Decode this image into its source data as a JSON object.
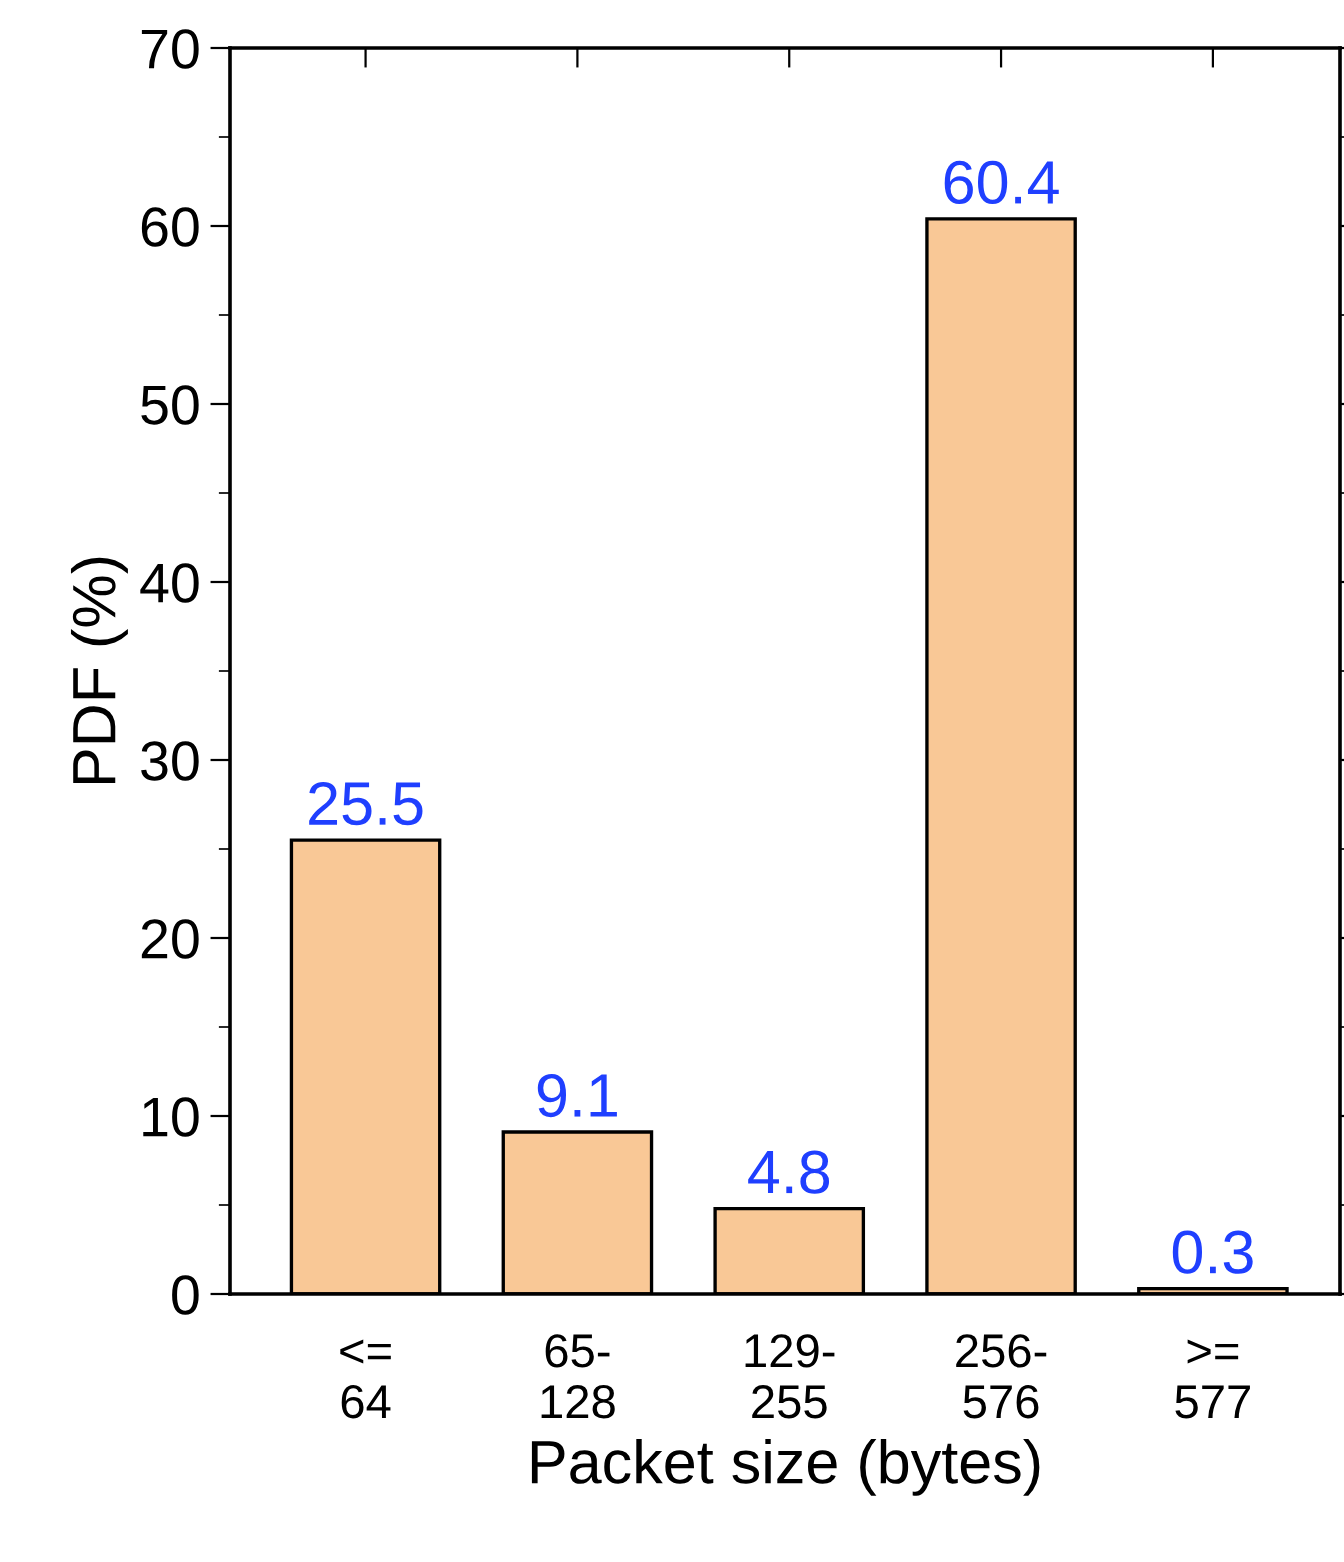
{
  "chart_data": {
    "type": "bar",
    "xlabel": "Packet size (bytes)",
    "ylabel": "PDF (%)",
    "categories": [
      "<=\n64",
      "65-\n128",
      "129-\n255",
      "256-\n576",
      ">=\n577"
    ],
    "values": [
      25.5,
      9.1,
      4.8,
      60.4,
      0.3
    ],
    "color": "#f9c896",
    "data_labels": true,
    "ylim": [
      0,
      70
    ],
    "yticks": [
      0,
      10,
      20,
      30,
      40,
      50,
      60,
      70
    ],
    "grid": false,
    "legend": false
  }
}
